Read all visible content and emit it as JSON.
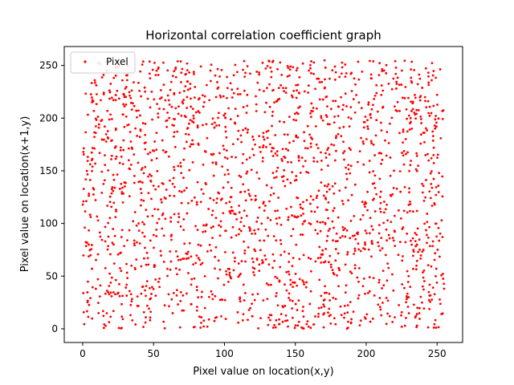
{
  "chart_data": {
    "type": "scatter",
    "title": "Horizontal correlation coefficient graph",
    "xlabel": "Pixel value on location(x,y)",
    "ylabel": "Pixel value on location(x+1,y)",
    "xlim": [
      -13,
      268
    ],
    "ylim": [
      -13,
      268
    ],
    "xticks": [
      0,
      50,
      100,
      150,
      200,
      250
    ],
    "yticks": [
      0,
      50,
      100,
      150,
      200,
      250
    ],
    "grid": false,
    "legend": {
      "position": "top-left"
    },
    "series": [
      {
        "name": "Pixel",
        "color": "#ff0000",
        "marker": "point",
        "distribution": "uniform-random",
        "x_range": [
          0,
          255
        ],
        "y_range": [
          0,
          255
        ],
        "approx_count": 2000
      }
    ]
  }
}
